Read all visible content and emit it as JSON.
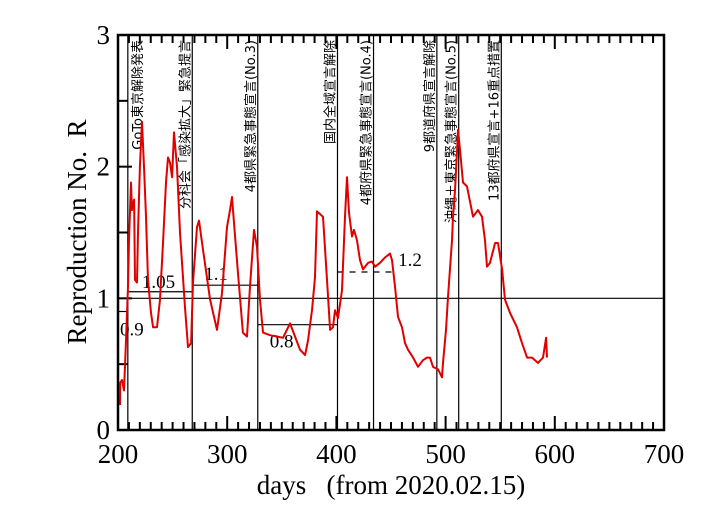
{
  "chart_data": {
    "type": "line",
    "title": "",
    "xlabel": "days   (from 2020.02.15)",
    "ylabel": "Reproduction No.  R",
    "xlim": [
      200,
      700
    ],
    "ylim": [
      0,
      3
    ],
    "xticks": [
      "200",
      "300",
      "400",
      "500",
      "600",
      "700"
    ],
    "xtick_values": [
      200,
      300,
      400,
      500,
      600,
      700
    ],
    "yticks": [
      "0",
      "1",
      "2",
      "3"
    ],
    "ytick_values": [
      0,
      1,
      2,
      3
    ],
    "grid": false,
    "reference_line": 1,
    "series": [
      {
        "name": "R",
        "color": "#e00000",
        "x": [
          201.8,
          202,
          203.7,
          205.5,
          207.3,
          209.2,
          210.1,
          211.9,
          212.8,
          214.7,
          215.6,
          217.4,
          218.3,
          220.1,
          222,
          223.8,
          225.6,
          227.5,
          230.2,
          232.1,
          235.7,
          238.5,
          241.2,
          244,
          245.8,
          247.6,
          249.5,
          251.3,
          254,
          256.8,
          261.4,
          264.1,
          266.9,
          268.7,
          272.3,
          274.2,
          277.8,
          284.3,
          290.7,
          295.2,
          299.8,
          302.6,
          304.4,
          305.3,
          309.9,
          314.4,
          318.1,
          320.9,
          324.5,
          327.3,
          330,
          332.8,
          339.2,
          345.6,
          351.1,
          357.5,
          362.1,
          366.7,
          371.3,
          374,
          377.7,
          380.4,
          382.2,
          387.7,
          391.4,
          394.2,
          396.9,
          398.7,
          401.5,
          405.1,
          407.9,
          409.7,
          411.5,
          414.3,
          416.1,
          418.9,
          421.6,
          424.4,
          429,
          432.6,
          435.4,
          439.9,
          444.5,
          449.1,
          450.9,
          453.7,
          456.4,
          460.1,
          462.8,
          465.6,
          470.2,
          474.7,
          479.3,
          483,
          485.7,
          488.5,
          493.1,
          496.7,
          497.6,
          500.4,
          502.2,
          505.9,
          506.8,
          508.6,
          510.5,
          511.4,
          513.2,
          515.9,
          519.6,
          525.1,
          529.7,
          533.3,
          536.1,
          537.9,
          540.7,
          545.3,
          548,
          551.7,
          554.4,
          559,
          565.4,
          570,
          574.6,
          579.1,
          581.9,
          584.6,
          589.2,
          592,
          592.9
        ],
        "y": [
          0.19,
          0.36,
          0.38,
          0.3,
          0.68,
          1.09,
          1.44,
          1.88,
          1.67,
          1.75,
          1.14,
          1.12,
          1.5,
          2.0,
          2.34,
          2.0,
          1.62,
          1.14,
          0.89,
          0.78,
          0.78,
          0.99,
          1.42,
          1.88,
          2.07,
          2.03,
          1.92,
          2.26,
          2.0,
          1.5,
          0.93,
          0.63,
          0.66,
          1.12,
          1.54,
          1.59,
          1.37,
          0.99,
          0.76,
          1.04,
          1.54,
          1.67,
          1.77,
          1.67,
          1.19,
          0.74,
          0.71,
          1.09,
          1.52,
          1.39,
          0.99,
          0.74,
          0.72,
          0.71,
          0.7,
          0.81,
          0.71,
          0.61,
          0.57,
          0.68,
          0.91,
          1.16,
          1.66,
          1.62,
          1.14,
          0.76,
          0.78,
          0.91,
          0.85,
          1.06,
          1.62,
          1.92,
          1.65,
          1.47,
          1.52,
          1.44,
          1.29,
          1.22,
          1.27,
          1.28,
          1.24,
          1.27,
          1.31,
          1.34,
          1.29,
          1.09,
          0.86,
          0.78,
          0.66,
          0.61,
          0.55,
          0.48,
          0.53,
          0.55,
          0.55,
          0.48,
          0.46,
          0.4,
          0.51,
          0.76,
          1.01,
          1.44,
          1.62,
          1.82,
          2.13,
          2.28,
          2.13,
          1.88,
          1.85,
          1.62,
          1.67,
          1.62,
          1.44,
          1.24,
          1.27,
          1.42,
          1.42,
          1.22,
          0.99,
          0.89,
          0.78,
          0.66,
          0.55,
          0.55,
          0.53,
          0.51,
          0.55,
          0.7,
          0.55
        ]
      }
    ],
    "events": [
      {
        "day": 209,
        "label": "GoTo東京解除発表",
        "side": "right"
      },
      {
        "day": 268,
        "label": "分科会「感染拡大」緊急提言",
        "side": "left"
      },
      {
        "day": 328,
        "label": "4都県緊急事態宣言(No.3)",
        "side": "left"
      },
      {
        "day": 401,
        "label": "国内全域宣言解除",
        "side": "left"
      },
      {
        "day": 434,
        "label": "4都府県緊急事態宣言(No.4)",
        "side": "left"
      },
      {
        "day": 492,
        "label": "9都道府県宣言解除",
        "side": "left"
      },
      {
        "day": 512,
        "label": "沖縄＋東京緊急事態宣言(No.5)",
        "side": "left"
      },
      {
        "day": 551,
        "label": "13都府県宣言+16重点措置",
        "side": "left"
      }
    ],
    "levels": [
      {
        "from": 200,
        "to": 209,
        "value": 0.9,
        "label": "0.9",
        "dashed": false
      },
      {
        "from": 209,
        "to": 268,
        "value": 1.05,
        "label": "1.05",
        "dashed": false
      },
      {
        "from": 268,
        "to": 328,
        "value": 1.1,
        "label": "1.1",
        "dashed": false
      },
      {
        "from": 328,
        "to": 401,
        "value": 0.8,
        "label": "0.8",
        "dashed": false
      },
      {
        "from": 401,
        "to": 451,
        "value": 1.2,
        "label": "1.2",
        "dashed": true
      }
    ]
  }
}
